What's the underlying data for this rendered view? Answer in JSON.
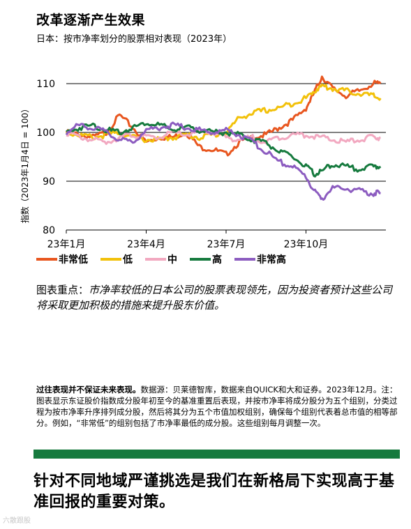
{
  "header": {
    "title": "改革逐渐产生效果",
    "subtitle": "日本：按市净率划分的股票相对表现（2023年）"
  },
  "colors": {
    "very_low": "#e8561f",
    "low": "#f2c10a",
    "mid": "#f2a8c0",
    "high": "#167a3e",
    "very_high": "#8c5cc0",
    "accent_bar": "#167a3e"
  },
  "chart_data": {
    "type": "line",
    "ylabel": "指数（2023年1月4日 = 100）",
    "ylim": [
      80,
      112
    ],
    "yticks": [
      80,
      90,
      100,
      110
    ],
    "xlim": [
      0,
      12
    ],
    "xtick_labels": [
      "23年1月",
      "23年4月",
      "23年7月",
      "23年10月"
    ],
    "xtick_positions": [
      0,
      3,
      6,
      9
    ],
    "grid": true,
    "legend_position": "bottom",
    "series": [
      {
        "name": "非常低",
        "color": "#e8561f",
        "x": [
          0,
          0.5,
          1,
          1.5,
          2,
          2.5,
          3,
          3.5,
          4,
          4.5,
          5,
          5.5,
          6,
          6.5,
          7,
          7.5,
          8,
          8.5,
          9,
          9.3,
          9.6,
          10,
          10.5,
          11,
          11.5,
          11.8
        ],
        "y": [
          100,
          99.5,
          99,
          100,
          103.5,
          101,
          98,
          99,
          99,
          100,
          97,
          96.5,
          95.5,
          98,
          99,
          99.5,
          101,
          102.5,
          105,
          108,
          111.5,
          109,
          107.5,
          108.5,
          110,
          110
        ]
      },
      {
        "name": "低",
        "color": "#f2c10a",
        "x": [
          0,
          0.5,
          1,
          1.5,
          2,
          2.5,
          3,
          3.5,
          4,
          4.5,
          5,
          5.5,
          6,
          6.5,
          7,
          7.5,
          8,
          8.5,
          9,
          9.3,
          9.6,
          10,
          10.5,
          11,
          11.5,
          11.8
        ],
        "y": [
          100,
          99.5,
          99,
          99.5,
          100,
          99,
          98.5,
          98.5,
          99,
          99.5,
          99,
          99.5,
          100,
          103,
          104,
          104.5,
          105,
          106,
          107,
          108.5,
          109.5,
          109,
          108.5,
          108,
          107.5,
          107
        ]
      },
      {
        "name": "中",
        "color": "#f2a8c0",
        "x": [
          0,
          0.5,
          1,
          1.5,
          2,
          2.5,
          3,
          3.5,
          4,
          4.5,
          5,
          5.5,
          6,
          6.5,
          7,
          7.5,
          8,
          8.5,
          9,
          9.5,
          10,
          10.5,
          11,
          11.5,
          11.8
        ],
        "y": [
          100,
          99,
          98.5,
          98,
          99,
          99.5,
          99,
          99,
          100,
          99.5,
          100,
          100,
          99,
          98.5,
          99,
          98,
          99,
          99.5,
          99.5,
          99,
          98.5,
          98,
          98.5,
          99,
          99
        ]
      },
      {
        "name": "高",
        "color": "#167a3e",
        "x": [
          0,
          0.5,
          1,
          1.5,
          2,
          2.5,
          3,
          3.5,
          4,
          4.5,
          5,
          5.5,
          6,
          6.5,
          7,
          7.5,
          8,
          8.5,
          9,
          9.3,
          9.6,
          10,
          10.5,
          11,
          11.5,
          11.8
        ],
        "y": [
          100,
          101,
          101.5,
          100.5,
          100,
          101,
          102,
          101.5,
          100.5,
          101,
          100.5,
          100,
          100,
          99.5,
          98.5,
          98,
          96,
          95,
          93,
          91.5,
          92,
          93.5,
          93,
          92.5,
          93,
          93
        ]
      },
      {
        "name": "非常高",
        "color": "#8c5cc0",
        "x": [
          0,
          0.5,
          1,
          1.5,
          2,
          2.5,
          3,
          3.5,
          4,
          4.5,
          5,
          5.5,
          6,
          6.5,
          7,
          7.5,
          8,
          8.5,
          9,
          9.3,
          9.6,
          10,
          10.5,
          11,
          11.5,
          11.8
        ],
        "y": [
          100,
          101.5,
          101,
          100,
          98.5,
          98,
          100.5,
          101,
          101.5,
          101,
          100.5,
          100,
          100.5,
          99.5,
          98,
          96,
          94,
          93,
          91,
          88,
          86.5,
          88.5,
          88.5,
          88,
          87.5,
          87.5
        ]
      }
    ]
  },
  "takeaway": {
    "label": "图表重点：",
    "text": "市净率较低的日本公司的股票表现领先，因为投资者预计这些公司将采取更加积极的措施来提升股东价值。"
  },
  "footnote": {
    "bold": "过往表现并不保证未来表现。",
    "text": "数据源：贝莱德智库，数据来自QUICK和大和证券。2023年12月。注：图表显示东证股价指数成分股年初至今的基准重置后表现，并按市净率将成分股分为五个组别，分类过程为按市净率升序排列成分股，然后将其分为五个市值加权组别，确保每个组别代表着总市值的相等部分。例如，“非常低”的组别包括了市净率最低的成分股。这些组别每月调整一次。"
  },
  "headline": "针对不同地域严谨挑选是我们在新格局下实现高于基准回报的重要对策。",
  "watermark": "六散跟股"
}
